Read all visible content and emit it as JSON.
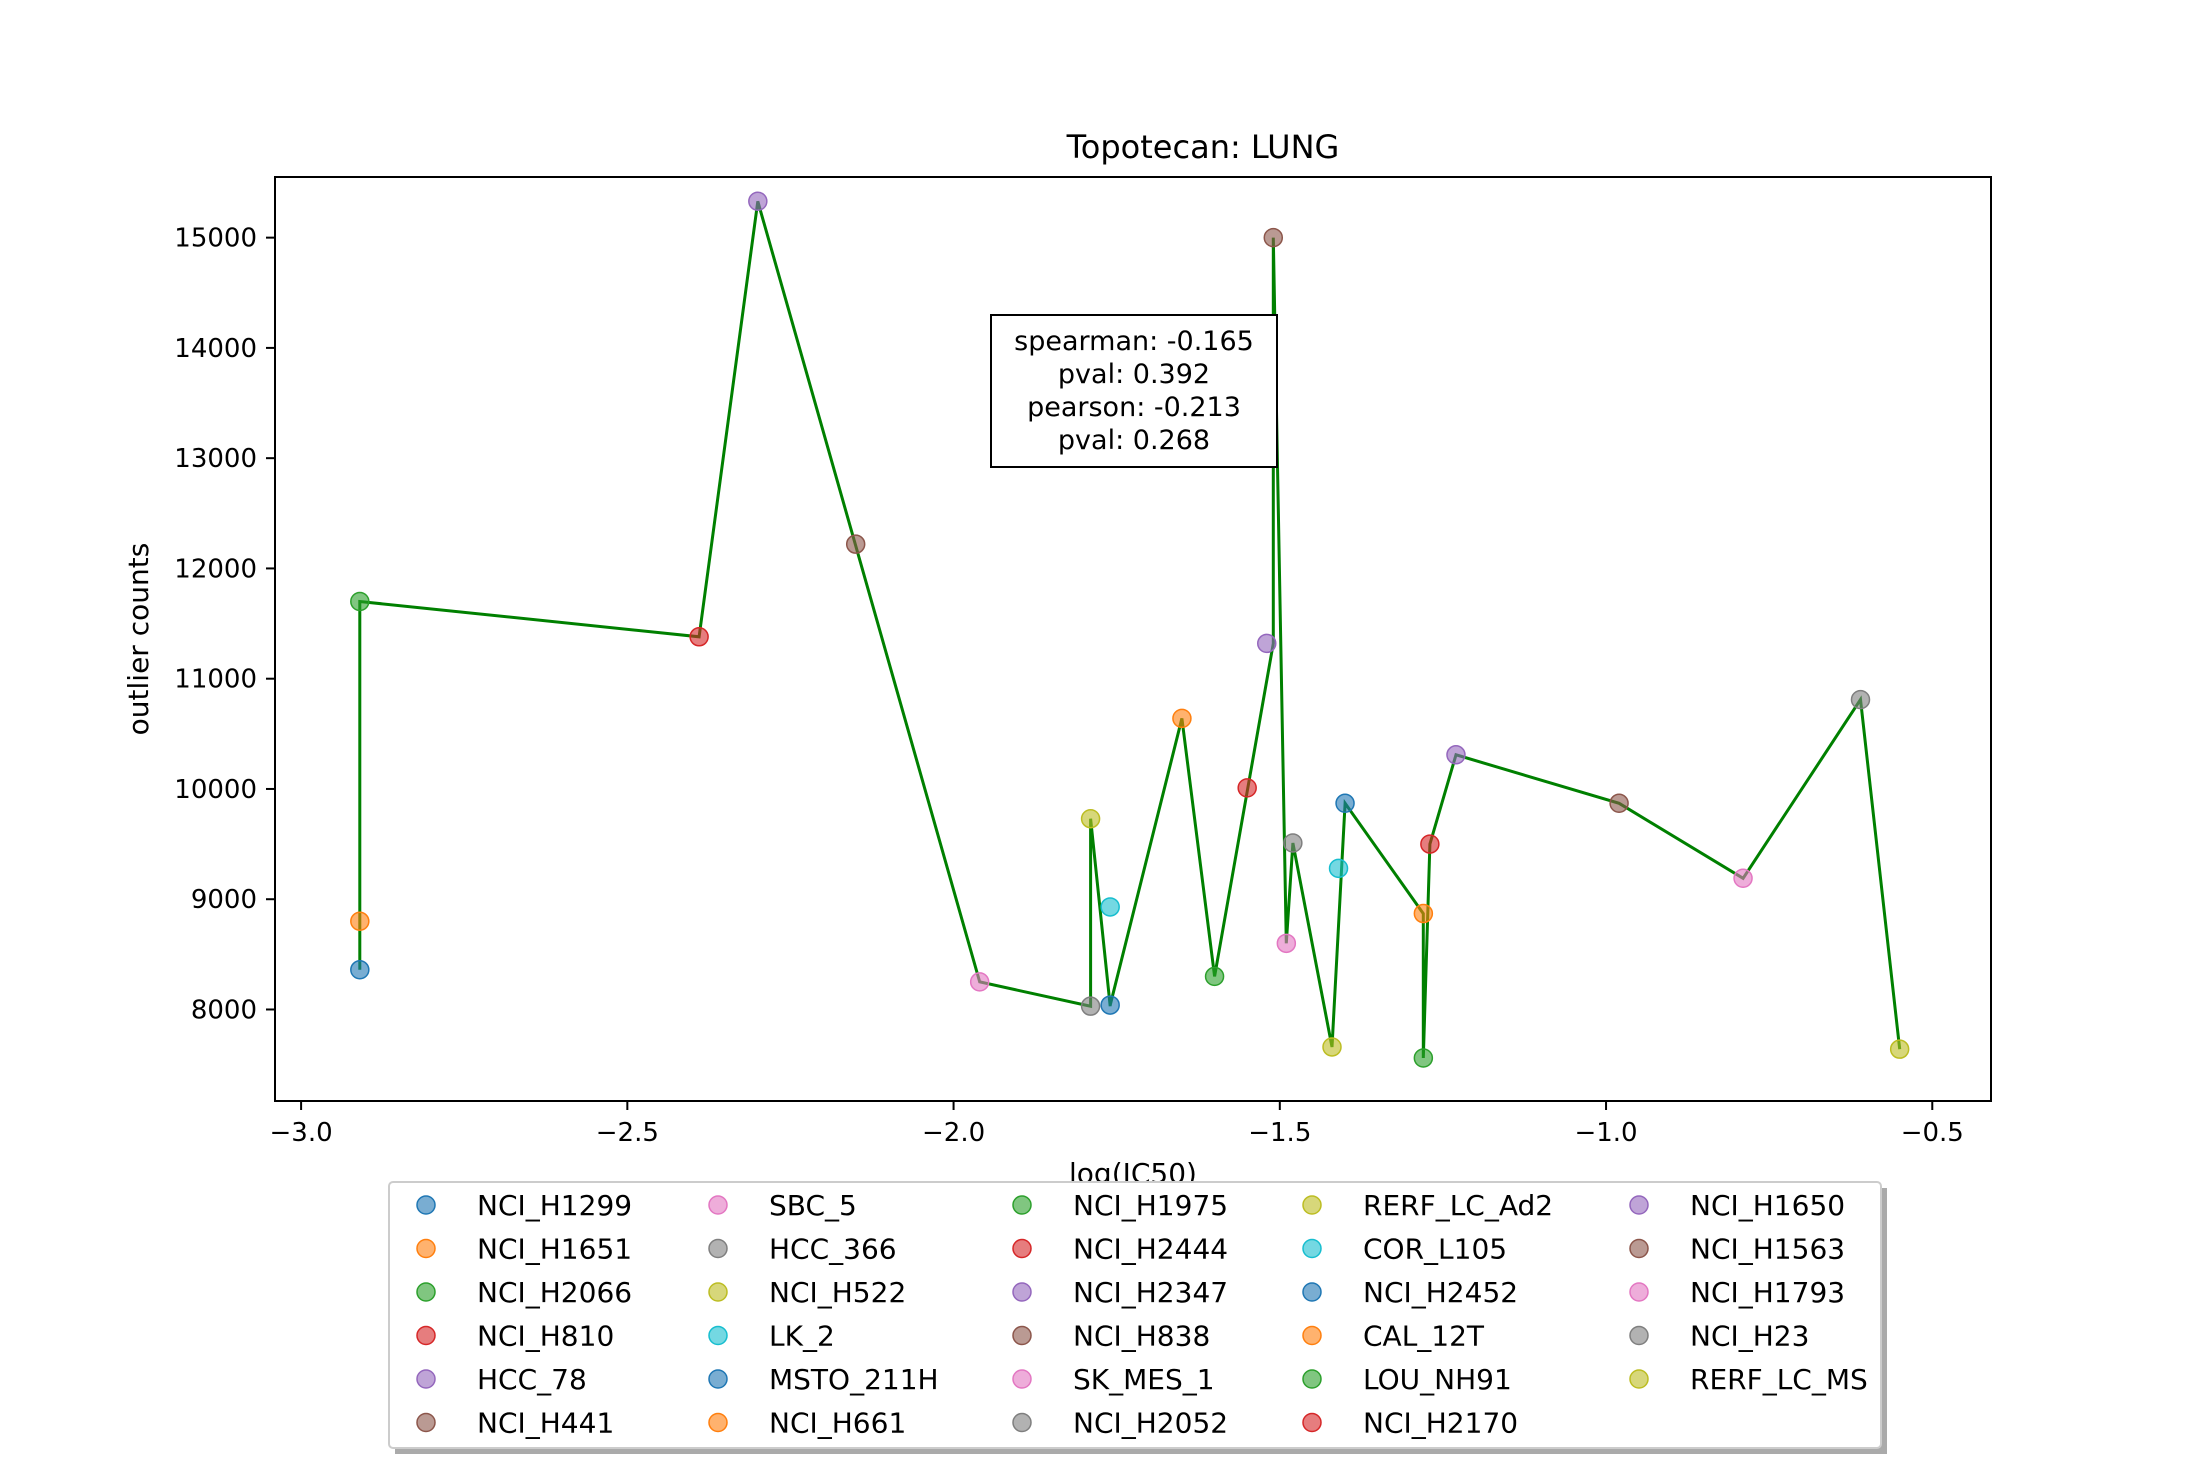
{
  "chart_data": {
    "type": "scatter",
    "title": "Topotecan: LUNG",
    "xlabel": "log(IC50)",
    "ylabel": "outlier counts",
    "xlim": [
      -3.04,
      -0.41
    ],
    "ylim": [
      7170,
      15550
    ],
    "xticks": [
      -3.0,
      -2.5,
      -2.0,
      -1.5,
      -1.0,
      -0.5
    ],
    "xtick_labels": [
      "−3.0",
      "−2.5",
      "−2.0",
      "−1.5",
      "−1.0",
      "−0.5"
    ],
    "yticks": [
      8000,
      9000,
      10000,
      11000,
      12000,
      13000,
      14000,
      15000
    ],
    "ytick_labels": [
      "8000",
      "9000",
      "10000",
      "11000",
      "12000",
      "13000",
      "14000",
      "15000"
    ],
    "grid": false,
    "legend_position": "below",
    "legend_columns": 5,
    "line_color": "#008000",
    "stats": [
      "spearman: -0.165",
      "pval: 0.392",
      "pearson: -0.213",
      "pval: 0.268"
    ],
    "line_x": [
      -2.91,
      -2.91,
      -2.39,
      -2.3,
      -1.96,
      -1.79,
      -1.79,
      -1.76,
      -1.76,
      -1.65,
      -1.6,
      -1.51,
      -1.51,
      -1.49,
      -1.48,
      -1.42,
      -1.4,
      -1.28,
      -1.28,
      -1.27,
      -1.23,
      -0.98,
      -0.79,
      -0.61,
      -0.55
    ],
    "line_y": [
      8360,
      11700,
      11380,
      15330,
      8250,
      8030,
      9730,
      8030,
      8040,
      10640,
      8300,
      11320,
      15000,
      8600,
      9510,
      7660,
      9870,
      8870,
      7560,
      9500,
      10310,
      9870,
      9190,
      10810,
      7640
    ],
    "series": [
      {
        "name": "NCI_H1299",
        "color": "#1f77b4",
        "x": -2.91,
        "y": 8360
      },
      {
        "name": "NCI_H1651",
        "color": "#ff7f0e",
        "x": -2.91,
        "y": 8800
      },
      {
        "name": "NCI_H2066",
        "color": "#2ca02c",
        "x": -2.91,
        "y": 11700
      },
      {
        "name": "NCI_H810",
        "color": "#d62728",
        "x": -2.39,
        "y": 11380
      },
      {
        "name": "HCC_78",
        "color": "#9467bd",
        "x": -2.3,
        "y": 15330
      },
      {
        "name": "NCI_H441",
        "color": "#8c564b",
        "x": -2.15,
        "y": 12220
      },
      {
        "name": "SBC_5",
        "color": "#e377c2",
        "x": -1.96,
        "y": 8250
      },
      {
        "name": "HCC_366",
        "color": "#7f7f7f",
        "x": -1.79,
        "y": 8030
      },
      {
        "name": "NCI_H522",
        "color": "#bcbd22",
        "x": -1.79,
        "y": 9730
      },
      {
        "name": "LK_2",
        "color": "#17becf",
        "x": -1.76,
        "y": 8930
      },
      {
        "name": "MSTO_211H",
        "color": "#1f77b4",
        "x": -1.76,
        "y": 8040
      },
      {
        "name": "NCI_H661",
        "color": "#ff7f0e",
        "x": -1.65,
        "y": 10640
      },
      {
        "name": "NCI_H1975",
        "color": "#2ca02c",
        "x": -1.6,
        "y": 8300
      },
      {
        "name": "NCI_H2444",
        "color": "#d62728",
        "x": -1.55,
        "y": 10010
      },
      {
        "name": "NCI_H2347",
        "color": "#9467bd",
        "x": -1.52,
        "y": 11320
      },
      {
        "name": "NCI_H838",
        "color": "#8c564b",
        "x": -1.51,
        "y": 15000
      },
      {
        "name": "SK_MES_1",
        "color": "#e377c2",
        "x": -1.49,
        "y": 8600
      },
      {
        "name": "NCI_H2052",
        "color": "#7f7f7f",
        "x": -1.48,
        "y": 9510
      },
      {
        "name": "RERF_LC_Ad2",
        "color": "#bcbd22",
        "x": -1.42,
        "y": 7660
      },
      {
        "name": "COR_L105",
        "color": "#17becf",
        "x": -1.41,
        "y": 9280
      },
      {
        "name": "NCI_H2452",
        "color": "#1f77b4",
        "x": -1.4,
        "y": 9870
      },
      {
        "name": "CAL_12T",
        "color": "#ff7f0e",
        "x": -1.28,
        "y": 8870
      },
      {
        "name": "LOU_NH91",
        "color": "#2ca02c",
        "x": -1.28,
        "y": 7560
      },
      {
        "name": "NCI_H2170",
        "color": "#d62728",
        "x": -1.27,
        "y": 9500
      },
      {
        "name": "NCI_H1650",
        "color": "#9467bd",
        "x": -1.23,
        "y": 10310
      },
      {
        "name": "NCI_H1563",
        "color": "#8c564b",
        "x": -0.98,
        "y": 9870
      },
      {
        "name": "NCI_H1793",
        "color": "#e377c2",
        "x": -0.79,
        "y": 9190
      },
      {
        "name": "NCI_H23",
        "color": "#7f7f7f",
        "x": -0.61,
        "y": 10810
      },
      {
        "name": "RERF_LC_MS",
        "color": "#bcbd22",
        "x": -0.55,
        "y": 7640
      }
    ]
  }
}
